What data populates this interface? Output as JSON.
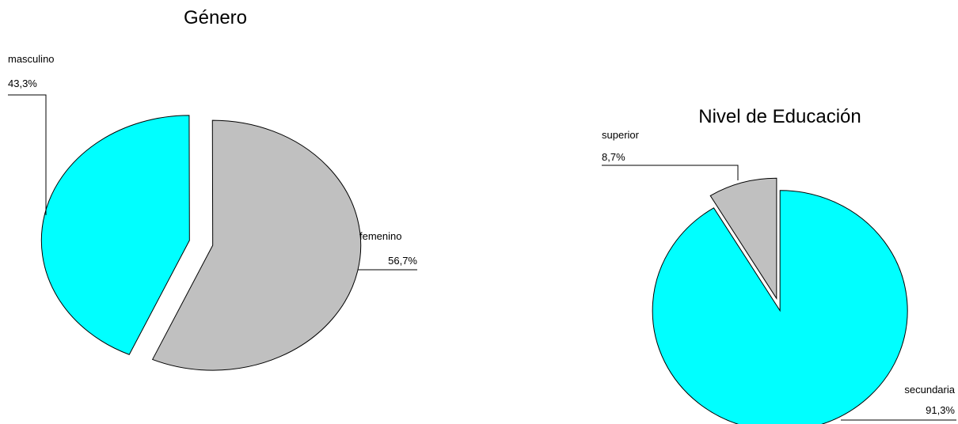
{
  "chart_data": [
    {
      "type": "pie",
      "title": "Género",
      "labels": [
        "masculino",
        "femenino"
      ],
      "values": [
        43.3,
        56.7
      ],
      "value_labels": [
        "43,3%",
        "56,7%"
      ],
      "colors": [
        "#00FFFF",
        "#C0C0C0"
      ],
      "exploded": true
    },
    {
      "type": "pie",
      "title": "Nivel de Educación",
      "labels": [
        "superior",
        "secundaria"
      ],
      "values": [
        8.7,
        91.3
      ],
      "value_labels": [
        "8,7%",
        "91,3%"
      ],
      "colors": [
        "#C0C0C0",
        "#00FFFF"
      ],
      "exploded": true
    }
  ]
}
